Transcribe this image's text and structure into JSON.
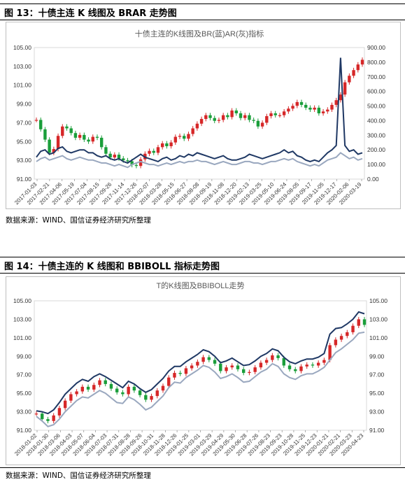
{
  "figures": [
    {
      "heading": "图 13：十债主连 K 线图及 BRAR 走势图",
      "source": "数据来源：WIND、国信证券经济研究所整理",
      "chart_data": {
        "type": "line",
        "title": "十债主连的K线图及BR(蓝)AR(灰)指标",
        "ylim_left": [
          91,
          105
        ],
        "ylim_right": [
          0,
          900
        ],
        "left_ticks": [
          "105.00",
          "103.00",
          "101.00",
          "99.00",
          "97.00",
          "95.00",
          "93.00",
          "91.00"
        ],
        "right_ticks": [
          "900.00",
          "800.00",
          "700.00",
          "600.00",
          "500.00",
          "400.00",
          "300.00",
          "200.00",
          "100.00",
          "0.00"
        ],
        "x_ticks": [
          "2017-01-03",
          "2017-02-21",
          "2017-04-06",
          "2017-05-19",
          "2017-07-04",
          "2017-08-15",
          "2017-09-26",
          "2017-11-14",
          "2017-12-26",
          "2018-02-07",
          "2018-03-28",
          "2018-05-15",
          "2018-06-27",
          "2018-08-08",
          "2018-09-19",
          "2018-11-08",
          "2018-12-20",
          "2019-02-13",
          "2019-03-25",
          "2019-05-10",
          "2019-06-24",
          "2019-08-05",
          "2019-09-17",
          "2019-11-05",
          "2019-12-17",
          "2020-02-06",
          "2020-03-19"
        ],
        "colors": {
          "up": "#d62728",
          "down": "#1a9e3a",
          "br": "#1f3864",
          "ar": "#9aa8bf"
        },
        "series": [
          {
            "name": "K线(收盘)",
            "axis": "left",
            "values": [
              97.3,
              96.3,
              95.2,
              93.8,
              94.2,
              95.6,
              96.6,
              96.4,
              95.9,
              95.4,
              95.7,
              95.2,
              95.0,
              95.5,
              95.4,
              94.4,
              93.7,
              93.3,
              93.6,
              93.2,
              93.0,
              92.9,
              92.5,
              92.4,
              93.1,
              93.7,
              94.0,
              93.8,
              94.4,
              94.8,
              94.5,
              94.9,
              95.5,
              95.6,
              95.3,
              95.8,
              96.4,
              96.9,
              97.4,
              97.8,
              97.5,
              97.2,
              97.3,
              97.8,
              97.6,
              98.3,
              98.0,
              97.5,
              97.8,
              97.3,
              97.2,
              96.6,
              97.0,
              97.7,
              98.0,
              97.8,
              97.8,
              98.2,
              98.5,
              98.8,
              99.2,
              98.9,
              98.6,
              98.4,
              98.6,
              98.0,
              98.2,
              98.4,
              98.9,
              99.4,
              100.0,
              101.3,
              102.0,
              102.6,
              103.2,
              103.7
            ]
          },
          {
            "name": "BR",
            "axis": "right",
            "values": [
              150,
              190,
              200,
              170,
              180,
              210,
              220,
              190,
              180,
              190,
              200,
              200,
              180,
              180,
              160,
              150,
              160,
              140,
              130,
              140,
              120,
              110,
              130,
              150,
              170,
              150,
              140,
              130,
              120,
              140,
              150,
              130,
              140,
              160,
              150,
              170,
              160,
              180,
              170,
              160,
              150,
              140,
              150,
              160,
              140,
              130,
              130,
              140,
              150,
              170,
              160,
              150,
              140,
              150,
              160,
              170,
              180,
              200,
              180,
              190,
              160,
              150,
              130,
              120,
              130,
              120,
              150,
              180,
              200,
              230,
              830,
              230,
              190,
              200,
              170,
              180
            ]
          },
          {
            "name": "AR",
            "axis": "right",
            "values": [
              120,
              140,
              150,
              130,
              140,
              150,
              160,
              140,
              130,
              140,
              150,
              140,
              130,
              130,
              120,
              110,
              110,
              100,
              90,
              100,
              90,
              80,
              100,
              110,
              120,
              110,
              100,
              100,
              90,
              100,
              110,
              100,
              110,
              120,
              110,
              120,
              120,
              130,
              120,
              120,
              110,
              100,
              110,
              120,
              110,
              100,
              100,
              110,
              120,
              120,
              110,
              110,
              100,
              110,
              120,
              120,
              130,
              140,
              130,
              140,
              120,
              110,
              100,
              90,
              100,
              90,
              110,
              130,
              140,
              150,
              180,
              160,
              140,
              150,
              130,
              140
            ]
          }
        ]
      }
    },
    {
      "heading": "图 14：十债主连的 K 线图和 BBIBOLL 指标走势图",
      "source": "数据来源：WIND、国信证券经济研究所整理",
      "chart_data": {
        "type": "line",
        "title": "T的K线图及BBIBOLL走势",
        "ylim_left": [
          91,
          105
        ],
        "ylim_right": [
          91,
          105
        ],
        "left_ticks": [
          "105.00",
          "103.00",
          "101.00",
          "99.00",
          "97.00",
          "95.00",
          "93.00",
          "91.00"
        ],
        "right_ticks": [
          "105.00",
          "103.00",
          "101.00",
          "99.00",
          "97.00",
          "95.00",
          "93.00",
          "91.00"
        ],
        "x_ticks": [
          "2018-01-02",
          "2018-01-30",
          "2018-03-06",
          "2018-04-03",
          "2018-05-07",
          "2018-06-04",
          "2018-07-03",
          "2018-07-31",
          "2018-08-28",
          "2018-09-26",
          "2018-10-31",
          "2018-11-28",
          "2018-12-26",
          "2019-01-25",
          "2019-03-01",
          "2019-03-29",
          "2019-04-29",
          "2019-05-30",
          "2019-06-28",
          "2019-07-26",
          "2019-08-23",
          "2019-09-23",
          "2019-10-28",
          "2019-11-25",
          "2019-12-23",
          "2020-01-21",
          "2020-02-21",
          "2020-03-23",
          "2020-04-23"
        ],
        "colors": {
          "up": "#d62728",
          "down": "#1a9e3a",
          "upper": "#1f3864",
          "lower": "#9aa8bf"
        },
        "series": [
          {
            "name": "K线(收盘)",
            "axis": "left",
            "values": [
              92.8,
              92.2,
              92.0,
              92.6,
              93.4,
              94.2,
              94.9,
              95.2,
              95.7,
              95.4,
              95.9,
              96.4,
              96.0,
              95.5,
              95.1,
              94.9,
              95.7,
              95.3,
              94.8,
              94.3,
              94.7,
              95.3,
              95.8,
              96.7,
              97.2,
              97.1,
              97.7,
              98.0,
              98.4,
              98.9,
              98.6,
              98.2,
              97.4,
              97.8,
              98.0,
              97.6,
              97.2,
              97.3,
              97.8,
              98.3,
              98.6,
              99.1,
              98.8,
              98.0,
              97.6,
              97.4,
              97.9,
              98.1,
              98.0,
              98.3,
              98.6,
              100.2,
              100.8,
              101.2,
              101.6,
              102.3,
              103.0,
              102.4
            ]
          },
          {
            "name": "BBIBOLL上轨",
            "axis": "left",
            "values": [
              93.1,
              93.0,
              92.8,
              93.2,
              94.0,
              94.9,
              95.5,
              96.1,
              96.5,
              96.3,
              96.8,
              97.1,
              96.8,
              96.4,
              96.0,
              95.6,
              96.3,
              96.0,
              95.5,
              95.1,
              95.4,
              96.0,
              96.6,
              97.4,
              97.9,
              97.9,
              98.4,
              98.8,
              99.2,
              99.7,
              99.5,
              99.0,
              98.3,
              98.5,
              98.8,
              98.4,
              98.0,
              98.1,
              98.5,
              99.0,
              99.3,
              99.8,
              99.6,
              98.9,
              98.4,
              98.2,
              98.5,
              98.7,
              98.7,
              98.9,
              99.3,
              101.4,
              102.0,
              102.1,
              102.5,
              103.0,
              103.8,
              103.6
            ]
          },
          {
            "name": "BBIBOLL下轨",
            "axis": "left",
            "values": [
              92.5,
              92.0,
              91.4,
              91.6,
              92.2,
              93.0,
              93.6,
              94.2,
              94.6,
              94.5,
              94.9,
              95.3,
              95.0,
              94.5,
              94.0,
              93.9,
              94.6,
              94.3,
              93.8,
              93.2,
              93.5,
              94.1,
              94.7,
              95.6,
              96.2,
              96.1,
              96.7,
              97.1,
              97.5,
              98.0,
              97.8,
              97.3,
              96.6,
              96.8,
              97.1,
              96.7,
              96.2,
              96.3,
              96.8,
              97.3,
              97.6,
              98.2,
              97.9,
              97.1,
              96.7,
              96.5,
              96.9,
              97.1,
              97.1,
              97.4,
              97.8,
              98.6,
              99.4,
              99.8,
              100.3,
              100.8,
              101.5,
              101.6
            ]
          }
        ]
      }
    }
  ]
}
